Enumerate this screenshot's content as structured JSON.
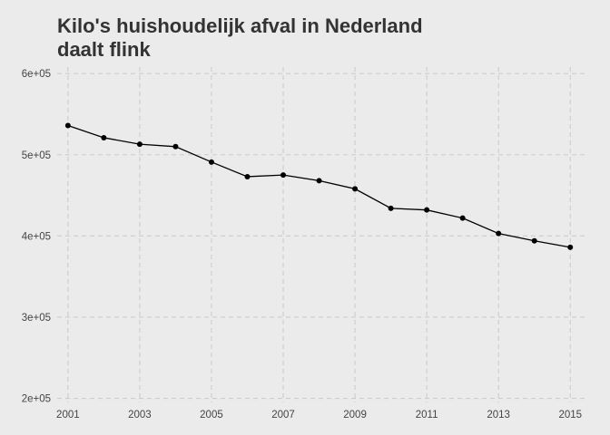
{
  "chart_data": {
    "type": "line",
    "title_lines": [
      "Kilo's huishoudelijk afval in Nederland",
      "daalt flink"
    ],
    "xlabel": "",
    "ylabel": "",
    "x": [
      2001,
      2002,
      2003,
      2004,
      2005,
      2006,
      2007,
      2008,
      2009,
      2010,
      2011,
      2012,
      2013,
      2014,
      2015
    ],
    "series": [
      {
        "values": [
          536000,
          521000,
          513000,
          510000,
          491000,
          473000,
          475000,
          468000,
          458000,
          434000,
          432000,
          422000,
          403000,
          394000,
          386000
        ]
      }
    ],
    "xlim": [
      2000.7,
      2015.5
    ],
    "ylim": [
      195000,
      608000
    ],
    "x_ticks": [
      2001,
      2003,
      2005,
      2007,
      2009,
      2011,
      2013,
      2015
    ],
    "x_tick_labels": [
      "2001",
      "2003",
      "2005",
      "2007",
      "2009",
      "2011",
      "2013",
      "2015"
    ],
    "y_ticks": [
      200000,
      300000,
      400000,
      500000,
      600000
    ],
    "y_tick_labels": [
      "2e+05",
      "3e+05",
      "4e+05",
      "5e+05",
      "6e+05"
    ],
    "grid": "dashed",
    "legend": "none",
    "colors": {
      "background": "#ebebeb",
      "grid": "#cccccc",
      "line": "#000000",
      "point": "#000000",
      "title": "#333333",
      "tick_text": "#444444"
    }
  }
}
